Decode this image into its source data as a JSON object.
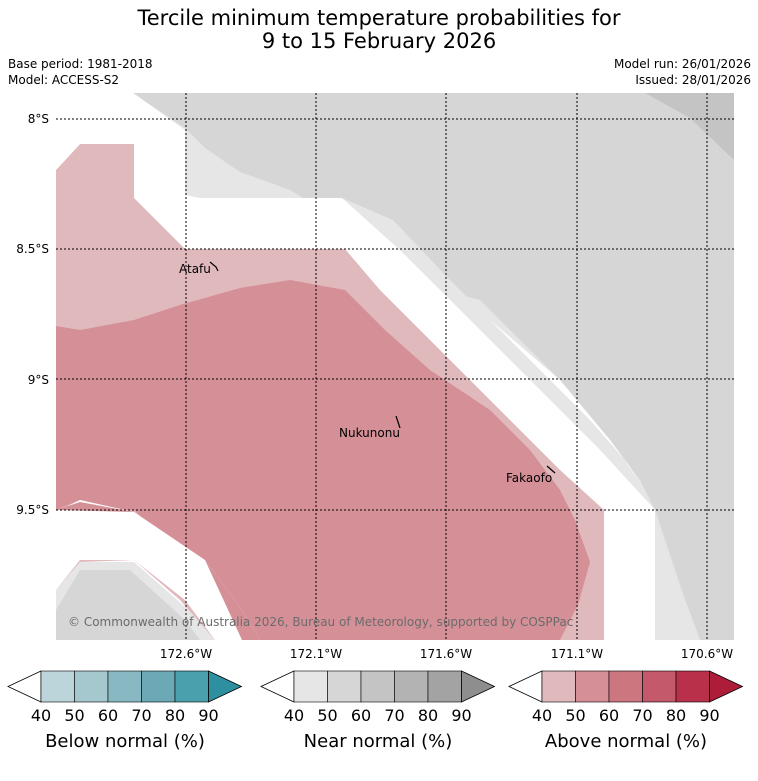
{
  "title": {
    "line1": "Tercile minimum temperature probabilities for",
    "line2": "9 to 15 February 2026"
  },
  "info": {
    "base_period": "Base period: 1981-2018",
    "model": "Model: ACCESS-S2",
    "model_run": "Model run: 26/01/2026",
    "issued": "Issued: 28/01/2026"
  },
  "map": {
    "lat_labels": [
      "8°S",
      "8.5°S",
      "9°S",
      "9.5°S"
    ],
    "lon_labels": [
      "172.6°W",
      "172.1°W",
      "171.6°W",
      "171.1°W",
      "170.6°W"
    ],
    "places": [
      "Atafu",
      "Nukunonu",
      "Fakaofo"
    ],
    "copyright": "© Commonwealth of Australia 2026, Bureau of Meteorology, supported by COSPPac"
  },
  "colorbars": [
    {
      "title": "Below normal (%)",
      "ticks": [
        "40",
        "50",
        "60",
        "70",
        "80",
        "90"
      ],
      "colors": [
        "#bcd5db",
        "#a5c8ce",
        "#88b8c2",
        "#6aa9b5",
        "#4aa0ad",
        "#2d8f9f"
      ]
    },
    {
      "title": "Near normal (%)",
      "ticks": [
        "40",
        "50",
        "60",
        "70",
        "80",
        "90"
      ],
      "colors": [
        "#e6e6e6",
        "#d6d6d6",
        "#c4c4c4",
        "#b3b3b3",
        "#a3a3a3",
        "#8e8e8e"
      ]
    },
    {
      "title": "Above normal (%)",
      "ticks": [
        "40",
        "50",
        "60",
        "70",
        "80",
        "90"
      ],
      "colors": [
        "#e0b9bd",
        "#d59097",
        "#cc777f",
        "#c3596a",
        "#b83049",
        "#ad1d3a"
      ]
    }
  ]
}
